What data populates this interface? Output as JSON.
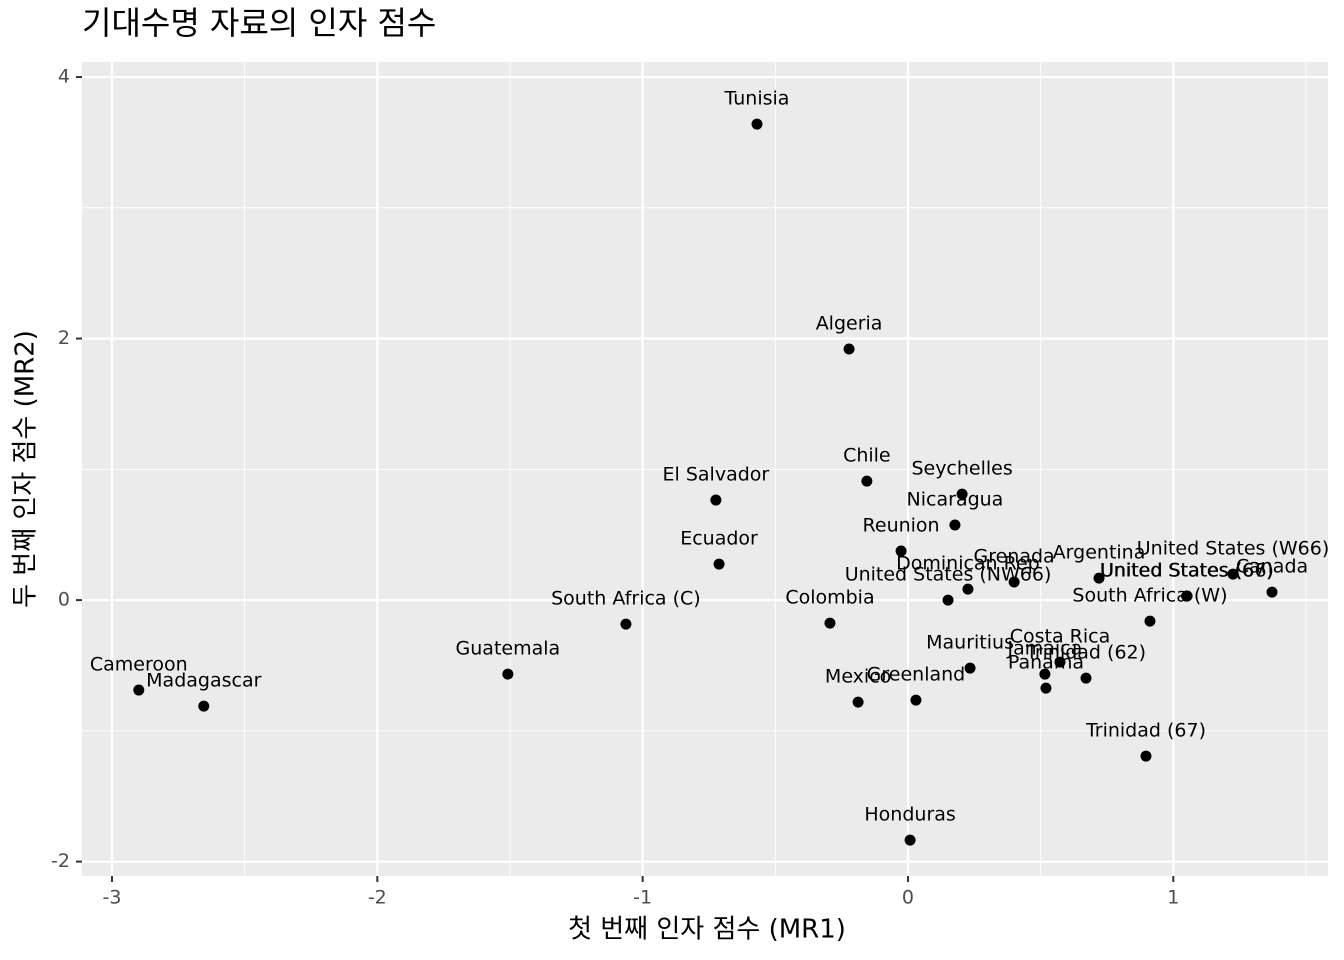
{
  "chart_data": {
    "type": "scatter",
    "title": "기대수명 자료의 인자 점수",
    "x_label": "첫 번째 인자 점수 (MR1)",
    "y_label": "두 번째 인자 점수 (MR2)",
    "point_labels": [
      "Tunisia",
      "Algeria",
      "El Salvador",
      "Chile",
      "Seychelles",
      "Nicaragua",
      "Reunion",
      "Ecuador",
      "Dominican Rep",
      "Grenada",
      "Argentina",
      "United States (W66)",
      "United States (66)",
      "United States (67)",
      "Canada",
      "South Africa (W)",
      "United States (NW66)",
      "Colombia",
      "South Africa (C)",
      "Guatemala",
      "Cameroon",
      "Madagascar",
      "Mexico",
      "Greenland",
      "Mauritius",
      "Costa Rica",
      "Jamaica",
      "Trinidad (62)",
      "Panama",
      "Trinidad (67)",
      "Honduras"
    ],
    "x": [
      -0.569,
      -0.222,
      -0.724,
      -0.155,
      0.204,
      0.177,
      -0.026,
      -0.712,
      0.226,
      0.4,
      0.72,
      1.225,
      1.052,
      1.05,
      1.372,
      0.912,
      0.151,
      -0.294,
      -1.063,
      -1.508,
      -2.899,
      -2.654,
      -0.188,
      0.03,
      0.234,
      0.573,
      0.516,
      0.671,
      0.52,
      0.897,
      0.008
    ],
    "values": [
      3.64,
      1.92,
      0.765,
      0.91,
      0.81,
      0.574,
      0.375,
      0.275,
      0.084,
      0.138,
      0.168,
      0.199,
      0.031,
      0.03,
      0.061,
      -0.161,
      0,
      -0.176,
      -0.184,
      -0.566,
      -0.688,
      -0.811,
      -0.78,
      -0.765,
      -0.52,
      -0.474,
      -0.566,
      -0.597,
      -0.673,
      -1.193,
      -1.836
    ],
    "color": "#000000",
    "xlim": [
      -3.113,
      1.583
    ],
    "ylim": [
      -2.11,
      4.115
    ],
    "xticks": [
      -3,
      -2,
      -1,
      0,
      1
    ],
    "yticks": [
      -2,
      0,
      2,
      4
    ],
    "grid": true
  }
}
